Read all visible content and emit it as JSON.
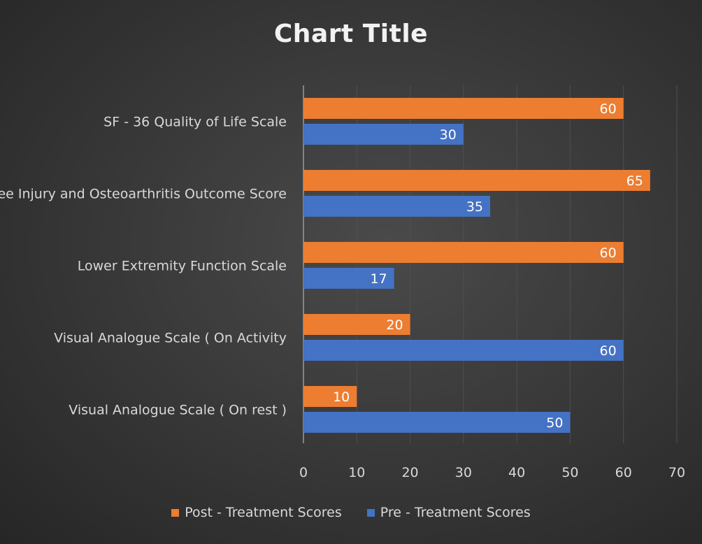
{
  "chart_data": {
    "type": "bar",
    "orientation": "horizontal",
    "title": "Chart Title",
    "xlabel": "",
    "ylabel": "",
    "xlim": [
      0,
      70
    ],
    "x_ticks": [
      "0",
      "10",
      "20",
      "30",
      "40",
      "50",
      "60",
      "70"
    ],
    "grid": "vertical",
    "legend_position": "bottom",
    "categories": [
      "SF - 36  Quality of Life Scale",
      "Knee Injury and Osteoarthritis Outcome Score",
      "Lower Extremity Function Scale",
      "Visual Analogue Scale ( On Activity",
      "Visual Analogue Scale ( On rest )"
    ],
    "series": [
      {
        "name": "Post - Treatment Scores",
        "color": "#ED7D31",
        "values": [
          60,
          65,
          60,
          20,
          10
        ]
      },
      {
        "name": "Pre - Treatment Scores",
        "color": "#4472C4",
        "values": [
          30,
          35,
          17,
          60,
          50
        ]
      }
    ]
  }
}
